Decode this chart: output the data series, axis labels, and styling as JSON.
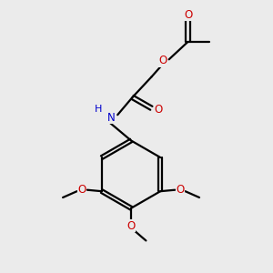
{
  "bg_color": "#ebebeb",
  "bond_color": "#000000",
  "oxygen_color": "#cc0000",
  "nitrogen_color": "#0000cc",
  "line_width": 1.6,
  "figsize": [
    3.0,
    3.0
  ],
  "dpi": 100,
  "xlim": [
    0,
    10
  ],
  "ylim": [
    0,
    10
  ]
}
